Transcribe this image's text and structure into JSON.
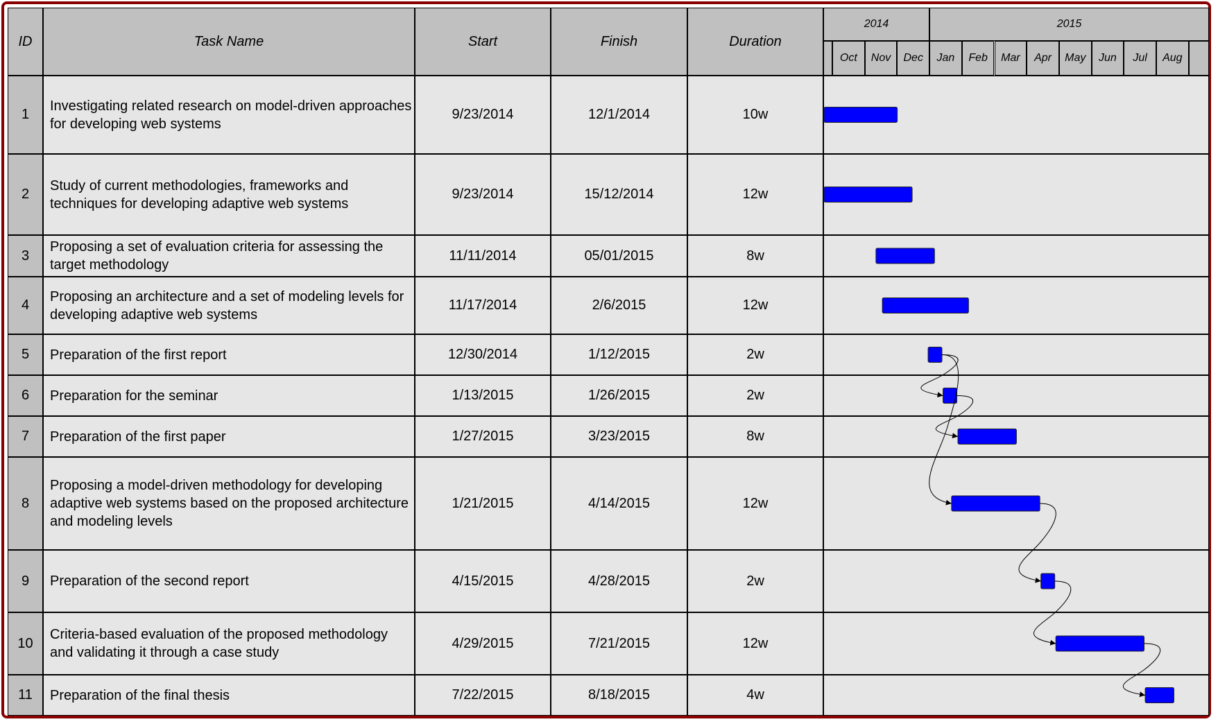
{
  "headers": {
    "id": "ID",
    "task": "Task Name",
    "start": "Start",
    "finish": "Finish",
    "duration": "Duration"
  },
  "timeline": {
    "years": [
      "2014",
      "2015"
    ],
    "months": [
      "Oct",
      "Nov",
      "Dec",
      "Jan",
      "Feb",
      "Mar",
      "Apr",
      "May",
      "Jun",
      "Jul",
      "Aug"
    ]
  },
  "tasks": [
    {
      "id": "1",
      "name": "Investigating related research on model-driven approaches for developing web systems",
      "start": "9/23/2014",
      "finish": "12/1/2014",
      "duration": "10w"
    },
    {
      "id": "2",
      "name": "Study of current methodologies, frameworks and techniques for developing adaptive web systems",
      "start": "9/23/2014",
      "finish": "15/12/2014",
      "duration": "12w"
    },
    {
      "id": "3",
      "name": "Proposing a set of evaluation criteria for assessing the target methodology",
      "start": "11/11/2014",
      "finish": "05/01/2015",
      "duration": "8w"
    },
    {
      "id": "4",
      "name": "Proposing an architecture and a set of modeling levels for developing adaptive web systems",
      "start": "11/17/2014",
      "finish": "2/6/2015",
      "duration": "12w"
    },
    {
      "id": "5",
      "name": "Preparation of the first report",
      "start": "12/30/2014",
      "finish": "1/12/2015",
      "duration": "2w"
    },
    {
      "id": "6",
      "name": "Preparation for the seminar",
      "start": "1/13/2015",
      "finish": "1/26/2015",
      "duration": "2w"
    },
    {
      "id": "7",
      "name": "Preparation of the first paper",
      "start": "1/27/2015",
      "finish": "3/23/2015",
      "duration": "8w"
    },
    {
      "id": "8",
      "name": "Proposing a model-driven methodology for developing adaptive web systems based on the proposed architecture and modeling levels",
      "start": "1/21/2015",
      "finish": "4/14/2015",
      "duration": "12w"
    },
    {
      "id": "9",
      "name": "Preparation of the second report",
      "start": "4/15/2015",
      "finish": "4/28/2015",
      "duration": "2w"
    },
    {
      "id": "10",
      "name": "Criteria-based evaluation of the proposed methodology and validating it through a case study",
      "start": "4/29/2015",
      "finish": "7/21/2015",
      "duration": "12w"
    },
    {
      "id": "11",
      "name": "Preparation of the final thesis",
      "start": "7/22/2015",
      "finish": "8/18/2015",
      "duration": "4w"
    }
  ],
  "chart_data": {
    "type": "gantt",
    "bar_color": "#0000ff",
    "frame_color": "#8b0000",
    "header_color": "#c0c0c0",
    "row_color": "#e6e6e6",
    "bars": [
      {
        "id": "1",
        "start": "2014-09-23",
        "end": "2014-12-01"
      },
      {
        "id": "2",
        "start": "2014-09-23",
        "end": "2014-12-15"
      },
      {
        "id": "3",
        "start": "2014-11-11",
        "end": "2015-01-05"
      },
      {
        "id": "4",
        "start": "2014-11-17",
        "end": "2015-02-06"
      },
      {
        "id": "5",
        "start": "2014-12-30",
        "end": "2015-01-12"
      },
      {
        "id": "6",
        "start": "2015-01-13",
        "end": "2015-01-26"
      },
      {
        "id": "7",
        "start": "2015-01-27",
        "end": "2015-03-23"
      },
      {
        "id": "8",
        "start": "2015-01-21",
        "end": "2015-04-14"
      },
      {
        "id": "9",
        "start": "2015-04-15",
        "end": "2015-04-28"
      },
      {
        "id": "10",
        "start": "2015-04-29",
        "end": "2015-07-21"
      },
      {
        "id": "11",
        "start": "2015-07-22",
        "end": "2015-08-18"
      }
    ],
    "dependencies": [
      [
        "5",
        "6"
      ],
      [
        "5",
        "8"
      ],
      [
        "6",
        "7"
      ],
      [
        "8",
        "9"
      ],
      [
        "9",
        "10"
      ],
      [
        "10",
        "11"
      ]
    ]
  }
}
